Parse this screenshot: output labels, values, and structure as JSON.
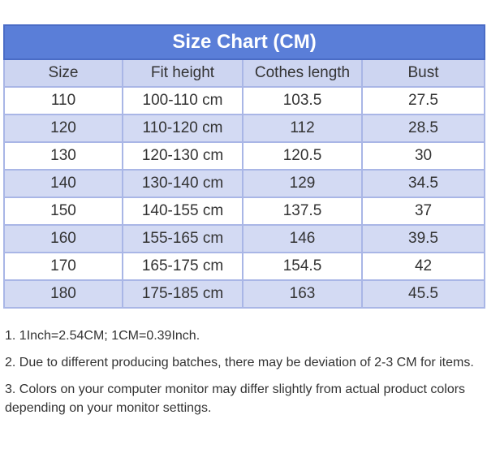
{
  "table": {
    "title": "Size Chart (CM)",
    "header": [
      "Size",
      "Fit height",
      "Cothes length",
      "Bust"
    ],
    "rows": [
      [
        "110",
        "100-110 cm",
        "103.5",
        "27.5"
      ],
      [
        "120",
        "110-120 cm",
        "112",
        "28.5"
      ],
      [
        "130",
        "120-130 cm",
        "120.5",
        "30"
      ],
      [
        "140",
        "130-140 cm",
        "129",
        "34.5"
      ],
      [
        "150",
        "140-155 cm",
        "137.5",
        "37"
      ],
      [
        "160",
        "155-165 cm",
        "146",
        "39.5"
      ],
      [
        "170",
        "165-175 cm",
        "154.5",
        "42"
      ],
      [
        "180",
        "175-185 cm",
        "163",
        "45.5"
      ]
    ]
  },
  "notes": [
    "1. 1Inch=2.54CM; 1CM=0.39Inch.",
    "2. Due to different producing batches, there may be deviation of 2-3 CM for items.",
    "3. Colors on your computer monitor may differ slightly from actual product colors depending on your monitor settings."
  ]
}
